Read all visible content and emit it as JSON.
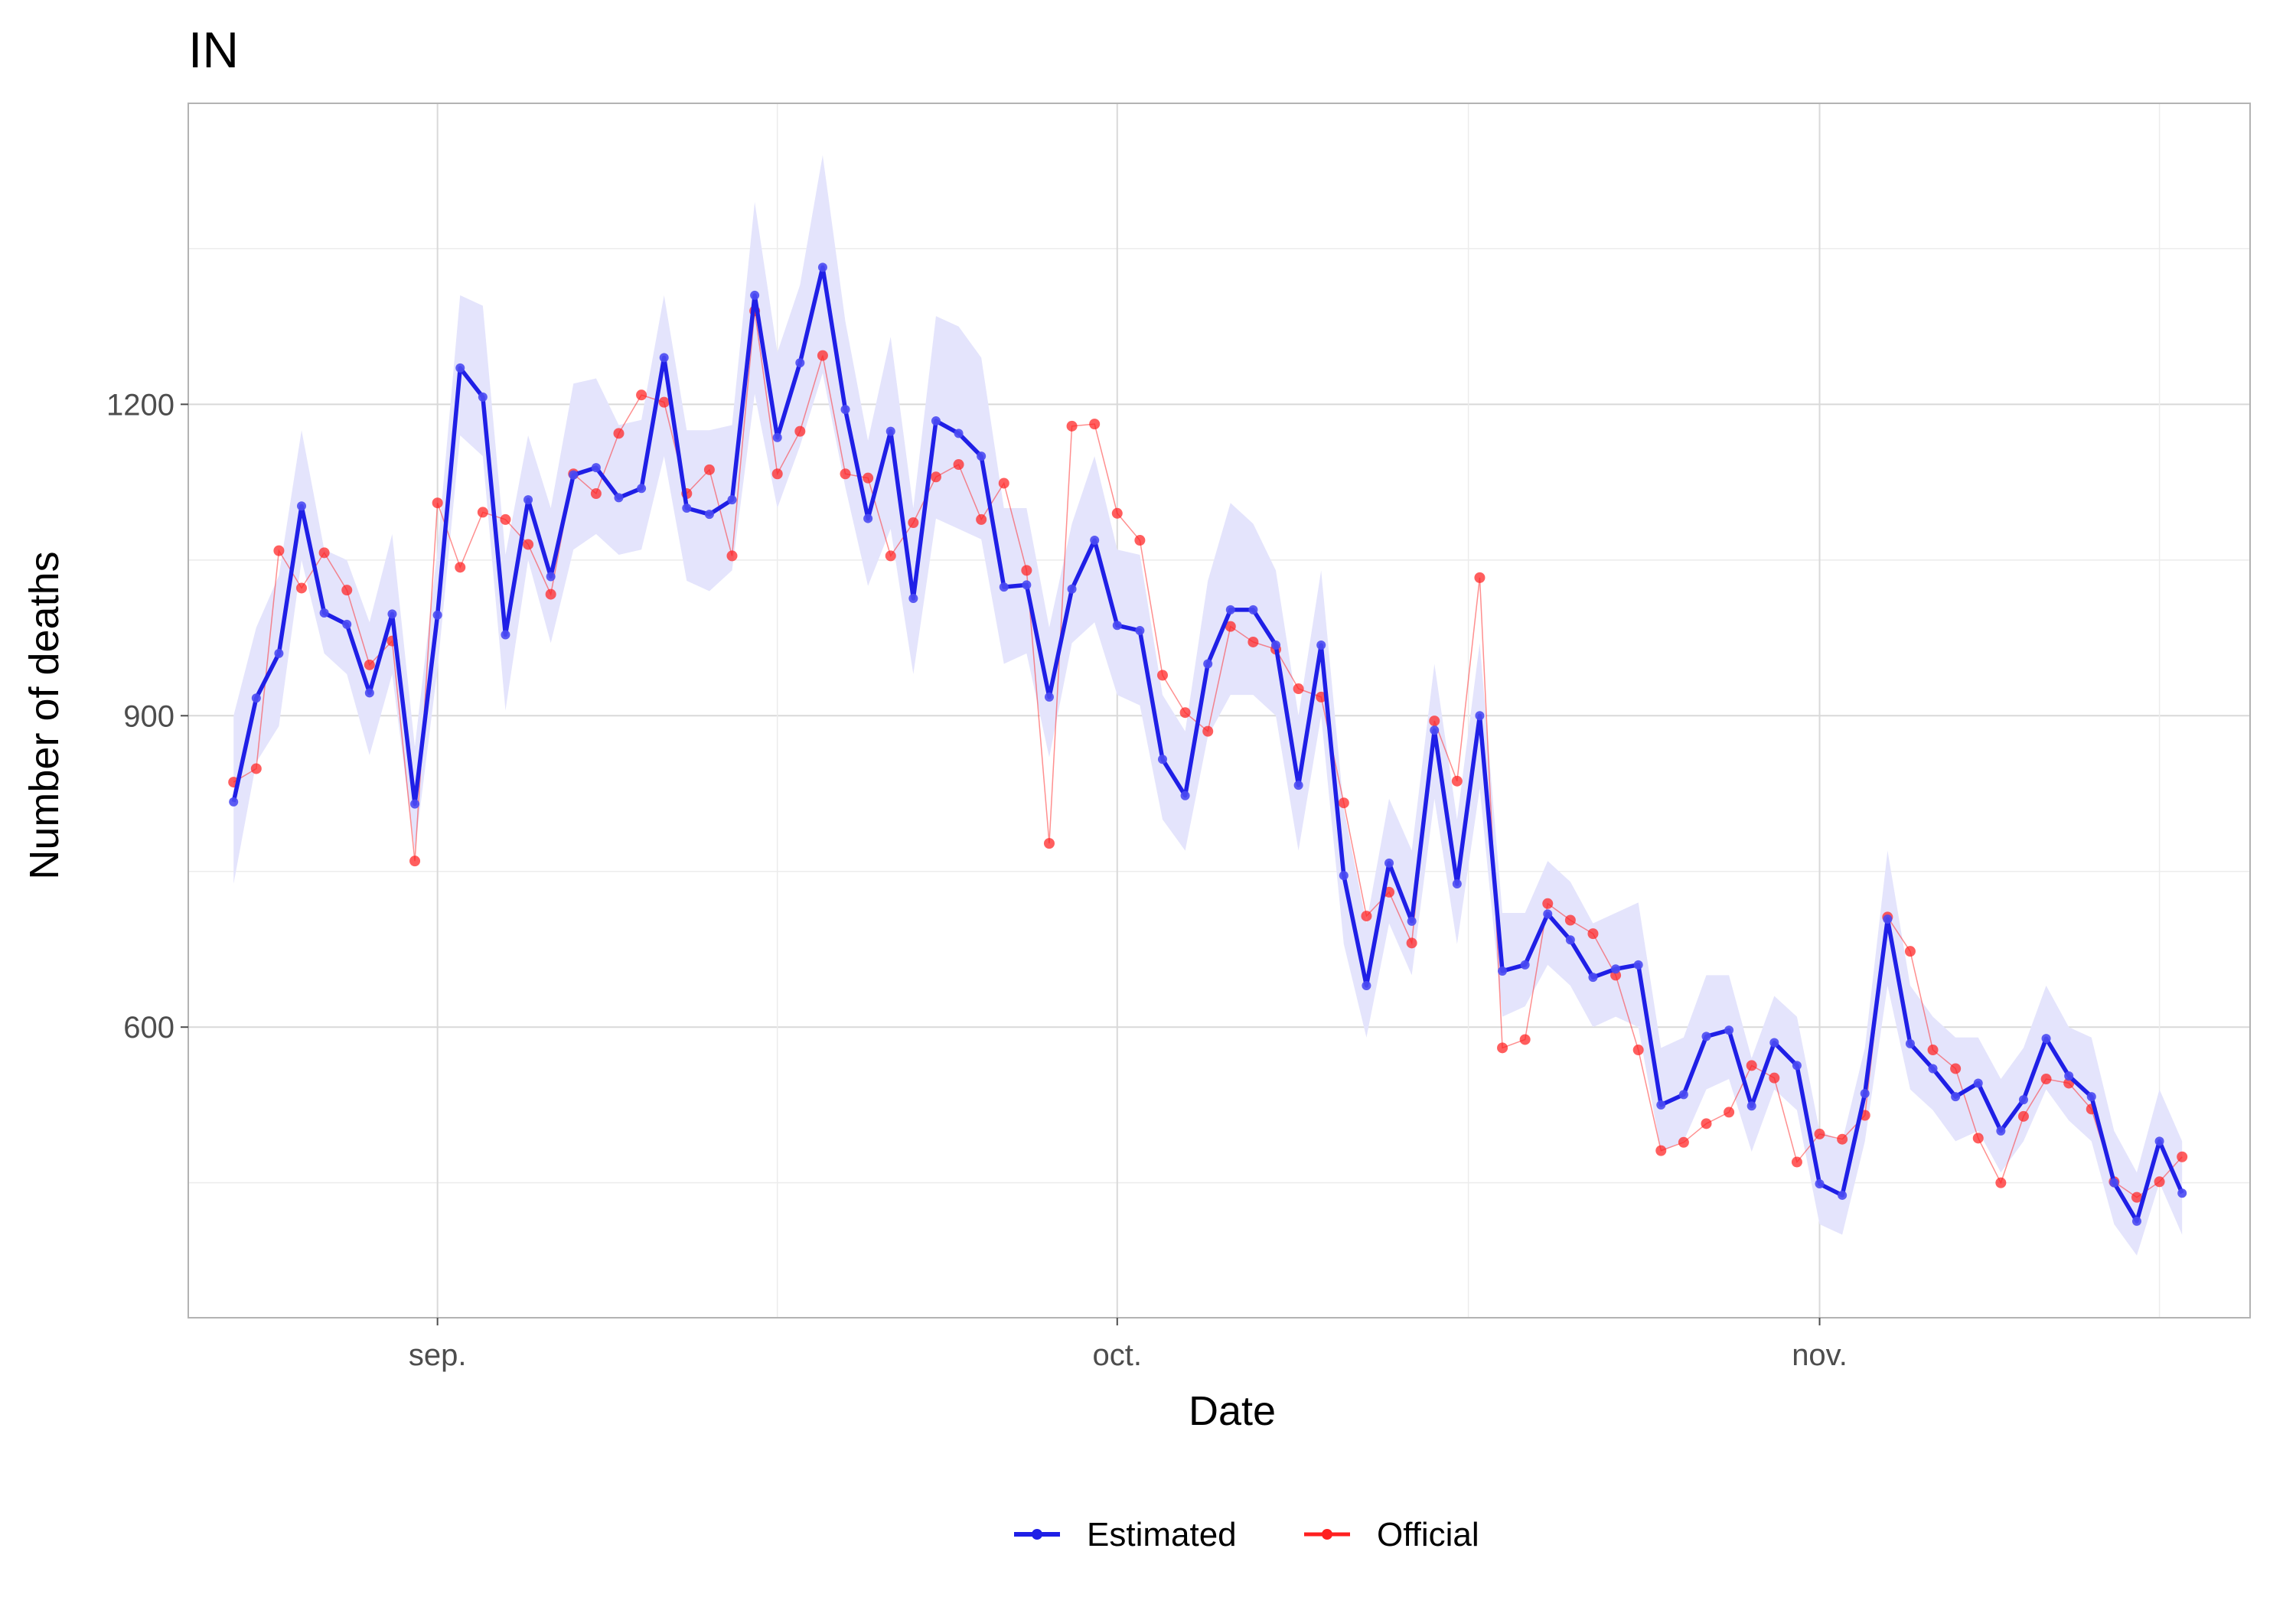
{
  "title": "IN",
  "chart_data": {
    "type": "line",
    "title": "IN",
    "xlabel": "Date",
    "ylabel": "Number of deaths",
    "x_start": "2020-08-23",
    "xlim": [
      "2020-08-21",
      "2020-11-20"
    ],
    "ylim": [
      320,
      1490
    ],
    "x_ticks": [
      {
        "date": "2020-09-01",
        "label": "sep."
      },
      {
        "date": "2020-10-01",
        "label": "oct."
      },
      {
        "date": "2020-11-01",
        "label": "nov."
      }
    ],
    "y_ticks": [
      600,
      900,
      1200
    ],
    "grid": true,
    "legend": {
      "position": "bottom",
      "entries": [
        "Estimated",
        "Official"
      ]
    },
    "series": [
      {
        "name": "Estimated",
        "color": "#1f1fe6",
        "values": [
          817,
          917,
          960,
          1102,
          999,
          988,
          922,
          998,
          815,
          997,
          1235,
          1207,
          978,
          1108,
          1034,
          1132,
          1139,
          1110,
          1119,
          1245,
          1100,
          1094,
          1108,
          1305,
          1168,
          1240,
          1332,
          1195,
          1090,
          1174,
          1013,
          1184,
          1172,
          1150,
          1024,
          1026,
          918,
          1022,
          1069,
          987,
          982,
          858,
          823,
          950,
          1002,
          1002,
          968,
          833,
          968,
          746,
          640,
          758,
          702,
          886,
          738,
          900,
          654,
          660,
          709,
          684,
          648,
          656,
          660,
          525,
          535,
          591,
          597,
          524,
          585,
          563,
          449,
          438,
          536,
          704,
          584,
          560,
          533,
          546,
          500,
          530,
          589,
          553,
          533,
          450,
          413,
          490,
          440
        ],
        "ci_lower": [
          738,
          855,
          890,
          1050,
          960,
          940,
          862,
          940,
          770,
          945,
          1170,
          1150,
          905,
          1050,
          970,
          1060,
          1075,
          1055,
          1060,
          1150,
          1030,
          1020,
          1040,
          1210,
          1100,
          1160,
          1230,
          1120,
          1025,
          1080,
          940,
          1090,
          1080,
          1070,
          950,
          960,
          860,
          970,
          990,
          920,
          910,
          800,
          770,
          880,
          920,
          920,
          900,
          770,
          900,
          680,
          590,
          700,
          650,
          820,
          680,
          830,
          610,
          620,
          660,
          640,
          600,
          610,
          600,
          480,
          490,
          540,
          550,
          480,
          540,
          520,
          410,
          400,
          490,
          640,
          540,
          520,
          490,
          500,
          460,
          490,
          540,
          510,
          490,
          410,
          380,
          450,
          400
        ],
        "ci_upper": [
          900,
          985,
          1035,
          1175,
          1060,
          1050,
          990,
          1075,
          870,
          1060,
          1305,
          1295,
          1055,
          1170,
          1100,
          1220,
          1225,
          1180,
          1185,
          1305,
          1175,
          1175,
          1180,
          1395,
          1250,
          1315,
          1440,
          1280,
          1165,
          1265,
          1100,
          1285,
          1275,
          1245,
          1100,
          1100,
          985,
          1085,
          1150,
          1060,
          1055,
          920,
          885,
          1030,
          1105,
          1085,
          1040,
          900,
          1040,
          810,
          700,
          820,
          770,
          950,
          800,
          970,
          710,
          710,
          760,
          740,
          700,
          710,
          720,
          580,
          590,
          650,
          650,
          570,
          630,
          610,
          500,
          490,
          580,
          770,
          640,
          610,
          590,
          590,
          550,
          580,
          640,
          600,
          590,
          500,
          460,
          540,
          490
        ]
      },
      {
        "name": "Official",
        "color": "#ff2020",
        "values": [
          836,
          849,
          1059,
          1023,
          1057,
          1021,
          949,
          972,
          760,
          1105,
          1043,
          1096,
          1089,
          1065,
          1017,
          1133,
          1114,
          1172,
          1209,
          1202,
          1114,
          1137,
          1054,
          1290,
          1133,
          1174,
          1247,
          1133,
          1129,
          1054,
          1086,
          1130,
          1142,
          1089,
          1124,
          1040,
          777,
          1179,
          1181,
          1095,
          1069,
          939,
          903,
          885,
          986,
          971,
          964,
          926,
          918,
          816,
          707,
          730,
          681,
          895,
          837,
          1033,
          580,
          588,
          719,
          703,
          690,
          650,
          578,
          481,
          489,
          507,
          518,
          563,
          551,
          470,
          497,
          492,
          515,
          706,
          673,
          578,
          560,
          493,
          450,
          514,
          550,
          546,
          521,
          451,
          436,
          451,
          475
        ]
      }
    ]
  }
}
